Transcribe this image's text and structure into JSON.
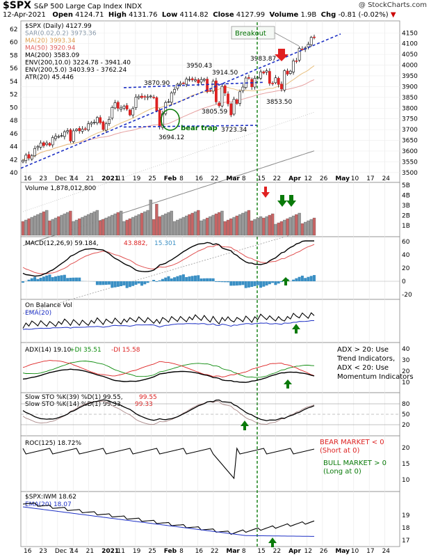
{
  "header": {
    "symbol": "$SPX",
    "name": "S&P 500 Large Cap Index",
    "exchange": "INDX",
    "date": "12-Apr-2021",
    "open_label": "Open",
    "open": "4124.71",
    "high_label": "High",
    "high": "4131.76",
    "low_label": "Low",
    "low": "4114.82",
    "close_label": "Close",
    "close": "4127.99",
    "volume_label": "Volume",
    "volume": "1.9B",
    "chg_label": "Chg",
    "chg": "-0.81 (-0.02%)",
    "source": "@ StockCharts.com"
  },
  "chart_data": [
    {
      "type": "candlestick",
      "panel": "price",
      "legend": [
        {
          "text": "$SPX (Daily) 4127.99",
          "color": "#000000"
        },
        {
          "text": "SAR(0.02,0.2) 3973.36",
          "color": "#8899aa"
        },
        {
          "text": "MA(20) 3993.34",
          "color": "#e0a050"
        },
        {
          "text": "MA(50) 3920.94",
          "color": "#e06060"
        },
        {
          "text": "MA(200) 3583.09",
          "color": "#000000"
        },
        {
          "text": "ENV(200,10.0) 3224.78 - 3941.40",
          "color": "#000000"
        },
        {
          "text": "ENV(200,5.0) 3403.93 - 3762.24",
          "color": "#000000"
        },
        {
          "text": "ATR(20) 45.446",
          "color": "#000000"
        }
      ],
      "y_right": {
        "min": 3480,
        "max": 4180,
        "ticks": [
          3500,
          3550,
          3600,
          3650,
          3700,
          3750,
          3800,
          3850,
          3900,
          3950,
          4000,
          4050,
          4100,
          4150
        ]
      },
      "y_left": {
        "ticks": [
          40,
          42,
          44,
          46,
          48,
          50,
          52,
          54,
          56,
          58,
          60,
          62
        ]
      },
      "x_labels": [
        "16",
        "23",
        "Dec 7",
        "14",
        "21",
        "2021",
        "11",
        "19",
        "25",
        "Feb",
        "8",
        "16",
        "22",
        "Mar",
        "8",
        "15",
        "22",
        "Apr",
        "12",
        "26",
        "May",
        "10",
        "17",
        "24"
      ],
      "annotations": [
        "Breakout",
        "bear trap",
        "3870.90",
        "3950.43",
        "3914.50",
        "3983.87",
        "3805.59",
        "3694.12",
        "3723.34",
        "3853.50"
      ],
      "closes": [
        3557,
        3581,
        3567,
        3578,
        3612,
        3621,
        3638,
        3625,
        3638,
        3627,
        3663,
        3669,
        3668,
        3672,
        3690,
        3695,
        3647,
        3694,
        3701,
        3694,
        3702,
        3703,
        3727,
        3732,
        3735,
        3756,
        3732,
        3700,
        3727,
        3748,
        3803,
        3825,
        3799,
        3801,
        3809,
        3795,
        3768,
        3798,
        3851,
        3855,
        3849,
        3851,
        3853,
        3856,
        3850,
        3787,
        3714,
        3774,
        3826,
        3830,
        3871,
        3887,
        3911,
        3915,
        3916,
        3935,
        3934,
        3931,
        3932,
        3917,
        3933,
        3934,
        3877,
        3881,
        3925,
        3829,
        3811,
        3901,
        3870,
        3820,
        3768,
        3842,
        3821,
        3876,
        3898,
        3940,
        3939,
        3899,
        3939,
        3943,
        3969,
        3963,
        3974,
        3915,
        3913,
        3941,
        3910,
        3889,
        3974,
        3958,
        3972,
        4020,
        4019,
        4078,
        4074,
        4080,
        4097,
        4129,
        4128
      ],
      "bear_market_note": [
        "BEAR MARKET < 0",
        "(Short at 0)"
      ],
      "bull_market_note": [
        "BULL MARKET > 0",
        "(Long at 0)"
      ]
    },
    {
      "type": "bar",
      "panel": "volume",
      "legend": "Volume 1,878,012,800",
      "y_ticks": [
        "5B",
        "4B",
        "3B",
        "2B",
        "1B"
      ]
    },
    {
      "type": "line",
      "panel": "macd",
      "legend": [
        "MACD(12,26,9) 59.184,",
        "43.882,",
        "15.301"
      ],
      "y_ticks": [
        60,
        40,
        20,
        0,
        -20
      ]
    },
    {
      "type": "line",
      "panel": "obv",
      "legend": [
        "On Balance Vol",
        "EMA(20)"
      ]
    },
    {
      "type": "line",
      "panel": "adx",
      "legend": [
        "ADX(14) 19.10",
        "+DI 35.51",
        "-DI 15.58"
      ],
      "y_ticks": [
        40,
        30,
        20,
        10
      ],
      "note": [
        "ADX > 20: Use",
        "Trend Indicators,",
        "ADX < 20: Use",
        "Momentum Indicators"
      ]
    },
    {
      "type": "line",
      "panel": "stochastics",
      "legend": [
        "Slow STO %K(39) %D(1) 99.55,",
        "99.55",
        "Slow STO %K(14) %D(1) 99.33,",
        "99.33"
      ],
      "y_ticks": [
        80,
        50,
        20
      ]
    },
    {
      "type": "line",
      "panel": "roc",
      "legend": "ROC(125) 18.72%",
      "y_ticks": [
        20,
        15,
        10
      ]
    },
    {
      "type": "line",
      "panel": "ratio",
      "legend": [
        "$SPX:IWM 18.62",
        "EMA(20) 18.07"
      ],
      "y_ticks": [
        19,
        18,
        17
      ]
    }
  ]
}
